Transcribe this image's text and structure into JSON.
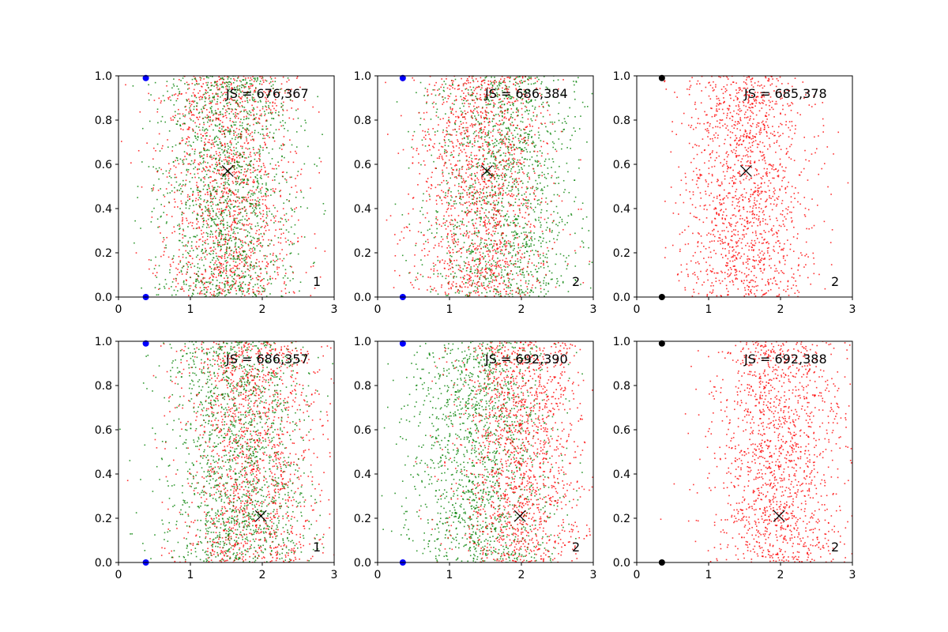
{
  "figure": {
    "background": "#ffffff"
  },
  "colors": {
    "red": "#ff0000",
    "green": "#008000",
    "blue": "#0000ff",
    "black": "#000000"
  },
  "chart_data": [
    {
      "type": "scatter",
      "xlim": [
        0,
        3
      ],
      "ylim": [
        0,
        1
      ],
      "xticks": [
        "0",
        "1",
        "2",
        "3"
      ],
      "yticks": [
        "0.0",
        "0.2",
        "0.4",
        "0.6",
        "0.8",
        "1.0"
      ],
      "grid": false,
      "annotation": "JS = 676,367",
      "corner_label": "1",
      "marker_x": [
        1.52,
        0.57
      ],
      "end_points": {
        "color": "blue",
        "x": 0.38,
        "y": [
          0.0,
          0.99
        ]
      },
      "series": [
        {
          "color": "red",
          "center_x": 1.52,
          "spread": 0.45,
          "count": 1500
        },
        {
          "color": "green",
          "center_x": 1.52,
          "spread": 0.45,
          "count": 1500
        }
      ]
    },
    {
      "type": "scatter",
      "xlim": [
        0,
        3
      ],
      "ylim": [
        0,
        1
      ],
      "xticks": [
        "0",
        "1",
        "2",
        "3"
      ],
      "yticks": [
        "0.0",
        "0.2",
        "0.4",
        "0.6",
        "0.8",
        "1.0"
      ],
      "grid": false,
      "annotation": "JS = 686,384",
      "corner_label": "2",
      "marker_x": [
        1.52,
        0.57
      ],
      "end_points": {
        "color": "blue",
        "x": 0.35,
        "y": [
          0.0,
          0.99
        ]
      },
      "series": [
        {
          "color": "green",
          "center_x": 1.75,
          "spread": 0.55,
          "count": 1500
        },
        {
          "color": "red",
          "center_x": 1.45,
          "spread": 0.45,
          "count": 1500
        }
      ]
    },
    {
      "type": "scatter",
      "xlim": [
        0,
        3
      ],
      "ylim": [
        0,
        1
      ],
      "xticks": [
        "0",
        "1",
        "2",
        "3"
      ],
      "yticks": [
        "0.0",
        "0.2",
        "0.4",
        "0.6",
        "0.8",
        "1.0"
      ],
      "grid": false,
      "annotation": "JS = 685,378",
      "corner_label": "2",
      "marker_x": [
        1.52,
        0.57
      ],
      "end_points": {
        "color": "black",
        "x": 0.35,
        "y": [
          0.0,
          0.99
        ]
      },
      "series": [
        {
          "color": "red",
          "center_x": 1.52,
          "spread": 0.45,
          "count": 1500
        }
      ]
    },
    {
      "type": "scatter",
      "xlim": [
        0,
        3
      ],
      "ylim": [
        0,
        1
      ],
      "xticks": [
        "0",
        "1",
        "2",
        "3"
      ],
      "yticks": [
        "0.0",
        "0.2",
        "0.4",
        "0.6",
        "0.8",
        "1.0"
      ],
      "grid": false,
      "annotation": "JS = 686,357",
      "corner_label": "1",
      "marker_x": [
        1.98,
        0.21
      ],
      "end_points": {
        "color": "blue",
        "x": 0.38,
        "y": [
          0.0,
          0.99
        ]
      },
      "series": [
        {
          "color": "red",
          "center_x": 1.85,
          "spread": 0.5,
          "count": 1500
        },
        {
          "color": "green",
          "center_x": 1.65,
          "spread": 0.5,
          "count": 1500
        }
      ]
    },
    {
      "type": "scatter",
      "xlim": [
        0,
        3
      ],
      "ylim": [
        0,
        1
      ],
      "xticks": [
        "0",
        "1",
        "2",
        "3"
      ],
      "yticks": [
        "0.0",
        "0.2",
        "0.4",
        "0.6",
        "0.8",
        "1.0"
      ],
      "grid": false,
      "annotation": "JS = 692,390",
      "corner_label": "2",
      "marker_x": [
        1.98,
        0.21
      ],
      "end_points": {
        "color": "blue",
        "x": 0.35,
        "y": [
          0.0,
          0.99
        ]
      },
      "series": [
        {
          "color": "green",
          "center_x": 1.45,
          "spread": 0.5,
          "count": 1500
        },
        {
          "color": "red",
          "center_x": 2.0,
          "spread": 0.45,
          "count": 1500
        }
      ]
    },
    {
      "type": "scatter",
      "xlim": [
        0,
        3
      ],
      "ylim": [
        0,
        1
      ],
      "xticks": [
        "0",
        "1",
        "2",
        "3"
      ],
      "yticks": [
        "0.0",
        "0.2",
        "0.4",
        "0.6",
        "0.8",
        "1.0"
      ],
      "grid": false,
      "annotation": "JS = 692,388",
      "corner_label": "2",
      "marker_x": [
        1.98,
        0.21
      ],
      "end_points": {
        "color": "black",
        "x": 0.35,
        "y": [
          0.0,
          0.99
        ]
      },
      "series": [
        {
          "color": "red",
          "center_x": 1.98,
          "spread": 0.45,
          "count": 1500
        }
      ]
    }
  ]
}
